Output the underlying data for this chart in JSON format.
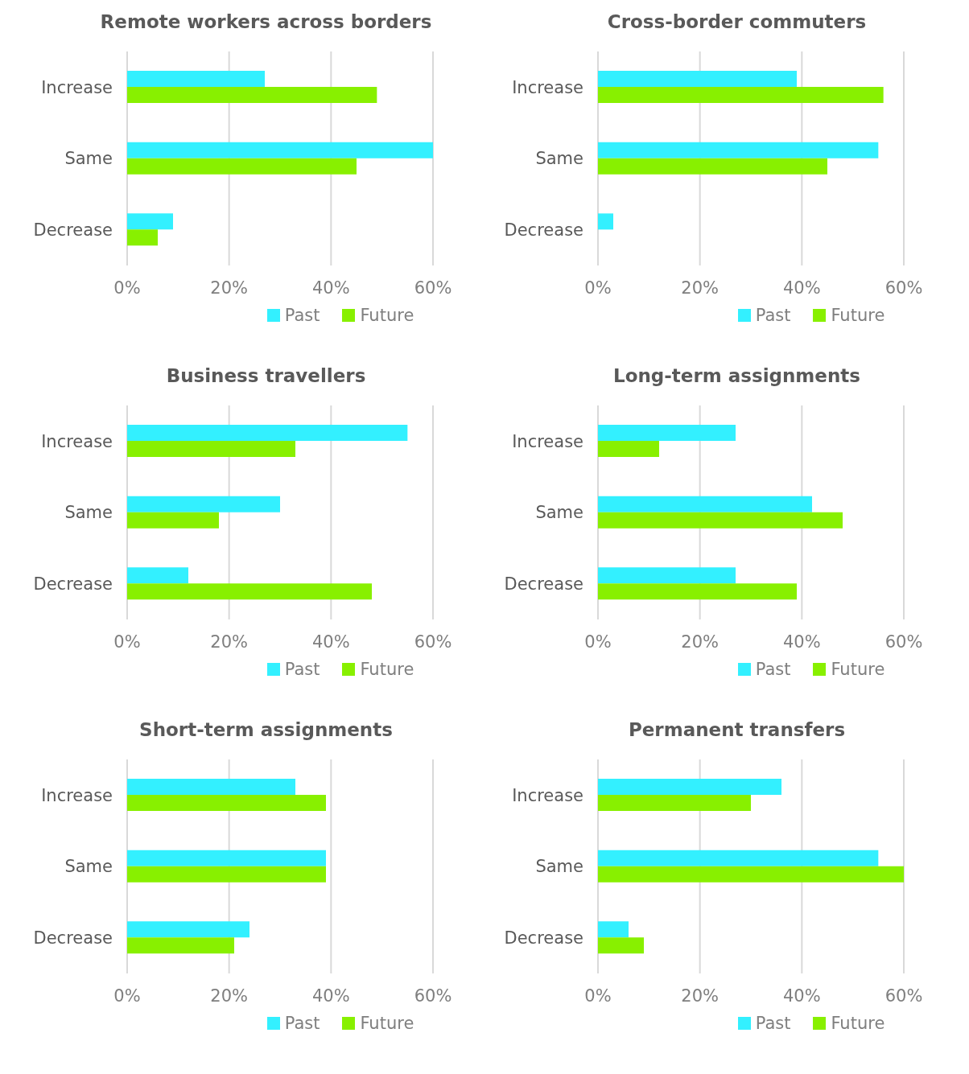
{
  "chart_data": [
    {
      "type": "bar",
      "orientation": "horizontal",
      "title": "Remote workers across borders",
      "categories": [
        "Increase",
        "Same",
        "Decrease"
      ],
      "series": [
        {
          "name": "Past",
          "color": "#33f0ff",
          "values": [
            27,
            60,
            9
          ]
        },
        {
          "name": "Future",
          "color": "#88f000",
          "values": [
            49,
            45,
            6
          ]
        }
      ],
      "xlim": [
        0,
        60
      ],
      "xticks": [
        {
          "value": 0,
          "label": "0%"
        },
        {
          "value": 20,
          "label": "20%"
        },
        {
          "value": 40,
          "label": "40%"
        },
        {
          "value": 60,
          "label": "60%"
        }
      ],
      "grid": "x",
      "legend": "bottom"
    },
    {
      "type": "bar",
      "orientation": "horizontal",
      "title": "Cross-border commuters",
      "categories": [
        "Increase",
        "Same",
        "Decrease"
      ],
      "series": [
        {
          "name": "Past",
          "color": "#33f0ff",
          "values": [
            39,
            55,
            3
          ]
        },
        {
          "name": "Future",
          "color": "#88f000",
          "values": [
            56,
            45,
            null
          ]
        }
      ],
      "xlim": [
        0,
        60
      ],
      "xticks": [
        {
          "value": 0,
          "label": "0%"
        },
        {
          "value": 20,
          "label": "20%"
        },
        {
          "value": 40,
          "label": "40%"
        },
        {
          "value": 60,
          "label": "60%"
        }
      ],
      "grid": "x",
      "legend": "bottom"
    },
    {
      "type": "bar",
      "orientation": "horizontal",
      "title": "Business travellers",
      "categories": [
        "Increase",
        "Same",
        "Decrease"
      ],
      "series": [
        {
          "name": "Past",
          "color": "#33f0ff",
          "values": [
            55,
            30,
            12
          ]
        },
        {
          "name": "Future",
          "color": "#88f000",
          "values": [
            33,
            18,
            48
          ]
        }
      ],
      "xlim": [
        0,
        60
      ],
      "xticks": [
        {
          "value": 0,
          "label": "0%"
        },
        {
          "value": 20,
          "label": "20%"
        },
        {
          "value": 40,
          "label": "40%"
        },
        {
          "value": 60,
          "label": "60%"
        }
      ],
      "grid": "x",
      "legend": "bottom"
    },
    {
      "type": "bar",
      "orientation": "horizontal",
      "title": "Long-term assignments",
      "categories": [
        "Increase",
        "Same",
        "Decrease"
      ],
      "series": [
        {
          "name": "Past",
          "color": "#33f0ff",
          "values": [
            27,
            42,
            27
          ]
        },
        {
          "name": "Future",
          "color": "#88f000",
          "values": [
            12,
            48,
            39
          ]
        }
      ],
      "xlim": [
        0,
        60
      ],
      "xticks": [
        {
          "value": 0,
          "label": "0%"
        },
        {
          "value": 20,
          "label": "20%"
        },
        {
          "value": 40,
          "label": "40%"
        },
        {
          "value": 60,
          "label": "60%"
        }
      ],
      "grid": "x",
      "legend": "bottom"
    },
    {
      "type": "bar",
      "orientation": "horizontal",
      "title": "Short-term assignments",
      "categories": [
        "Increase",
        "Same",
        "Decrease"
      ],
      "series": [
        {
          "name": "Past",
          "color": "#33f0ff",
          "values": [
            33,
            39,
            24
          ]
        },
        {
          "name": "Future",
          "color": "#88f000",
          "values": [
            39,
            39,
            21
          ]
        }
      ],
      "xlim": [
        0,
        60
      ],
      "xticks": [
        {
          "value": 0,
          "label": "0%"
        },
        {
          "value": 20,
          "label": "20%"
        },
        {
          "value": 40,
          "label": "40%"
        },
        {
          "value": 60,
          "label": "60%"
        }
      ],
      "grid": "x",
      "legend": "bottom"
    },
    {
      "type": "bar",
      "orientation": "horizontal",
      "title": "Permanent transfers",
      "categories": [
        "Increase",
        "Same",
        "Decrease"
      ],
      "series": [
        {
          "name": "Past",
          "color": "#33f0ff",
          "values": [
            36,
            55,
            6
          ]
        },
        {
          "name": "Future",
          "color": "#88f000",
          "values": [
            30,
            60,
            9
          ]
        }
      ],
      "xlim": [
        0,
        60
      ],
      "xticks": [
        {
          "value": 0,
          "label": "0%"
        },
        {
          "value": 20,
          "label": "20%"
        },
        {
          "value": 40,
          "label": "40%"
        },
        {
          "value": 60,
          "label": "60%"
        }
      ],
      "grid": "x",
      "legend": "bottom"
    }
  ]
}
